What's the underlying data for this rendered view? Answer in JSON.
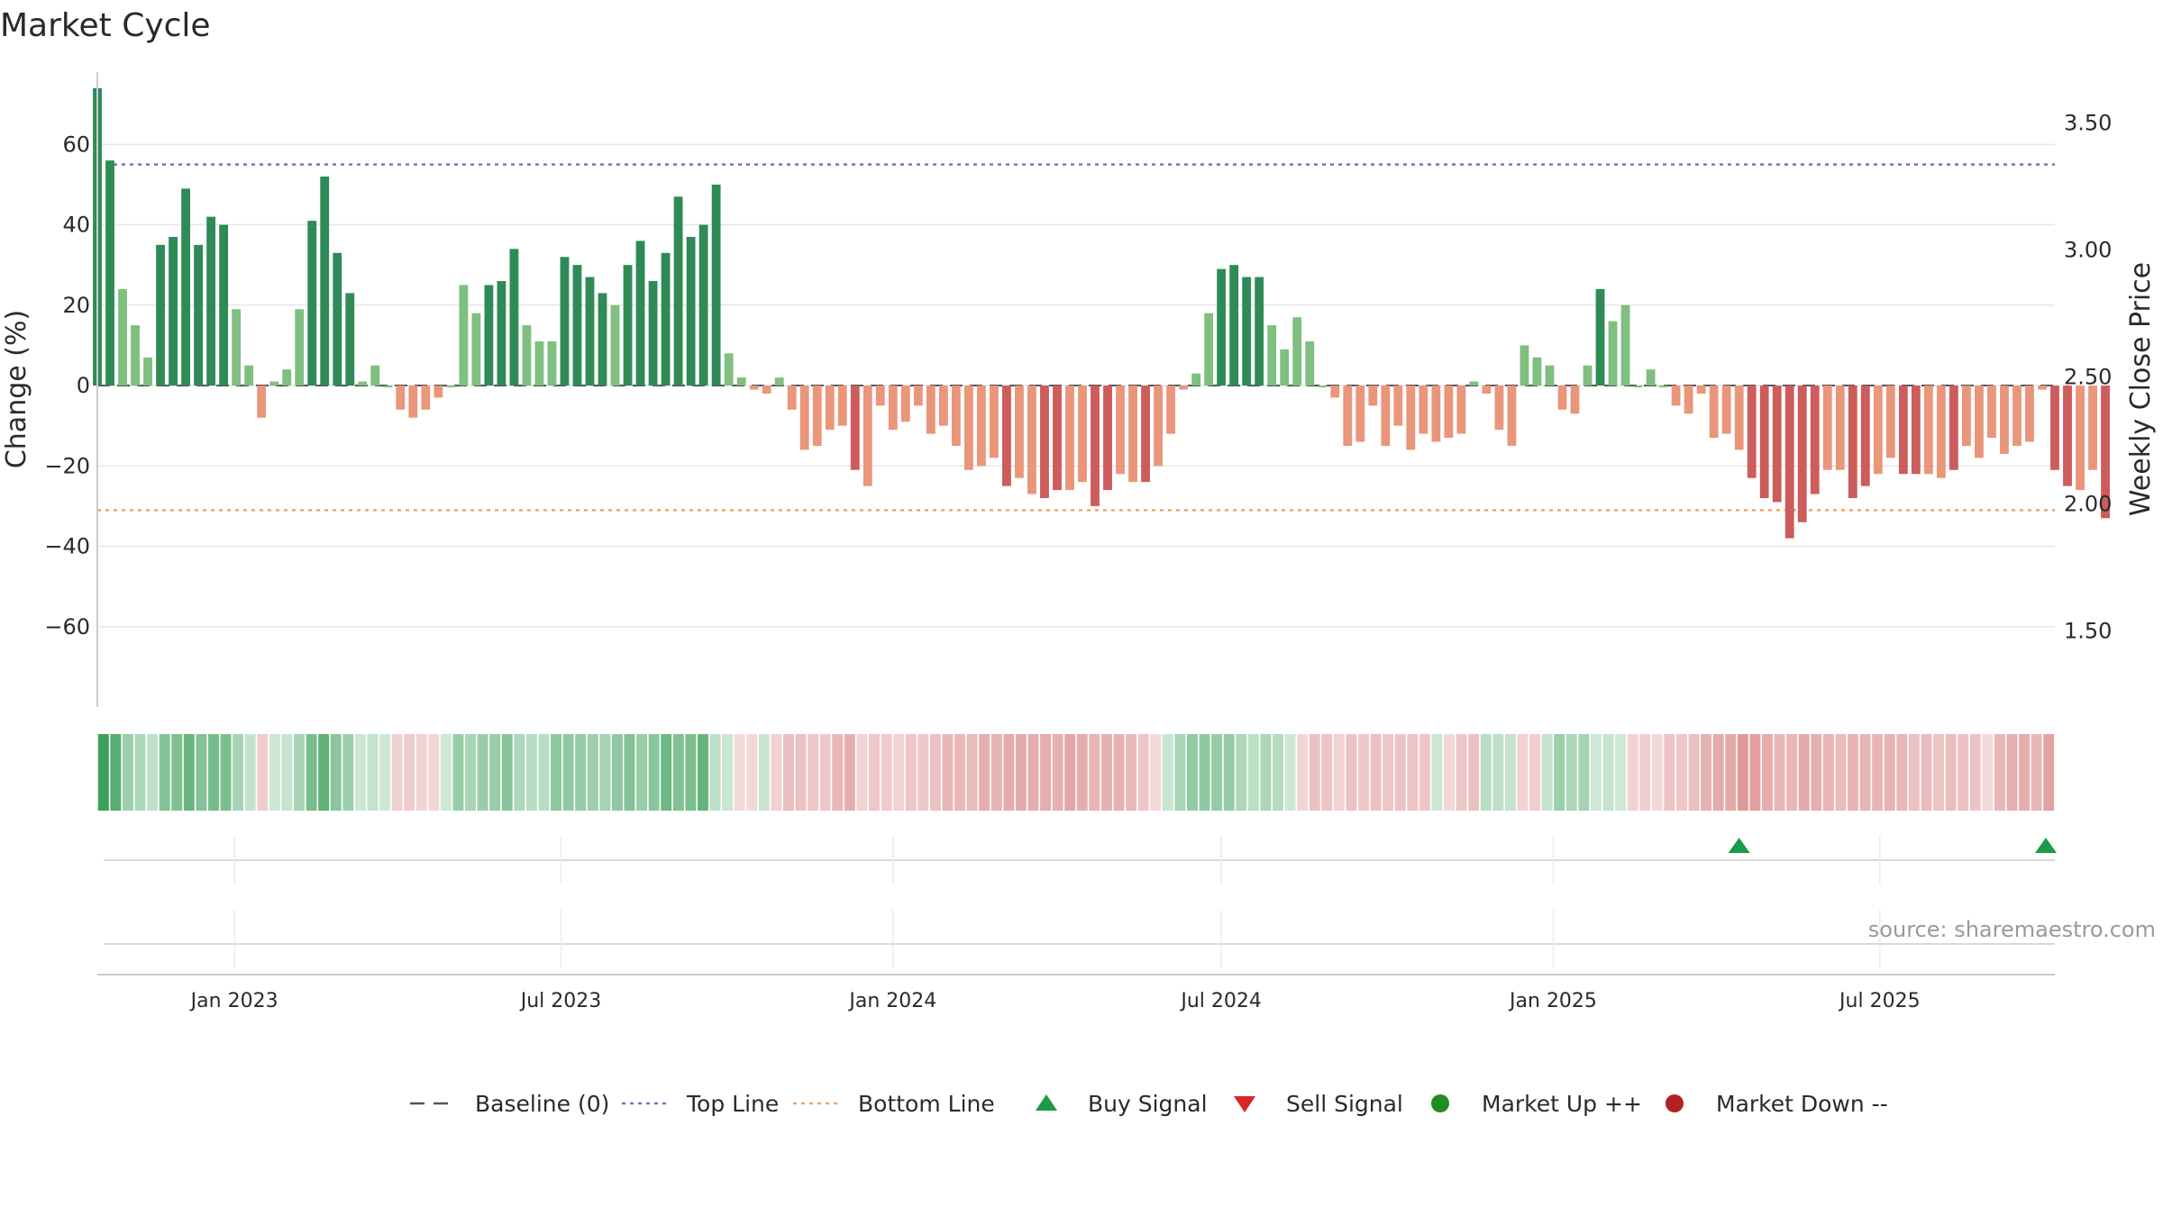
{
  "chart_data": {
    "type": "bar",
    "title": "Market Cycle",
    "ylabel": "Change (%)",
    "y2label": "Weekly Close Price",
    "source": "source: sharemaestro.com",
    "ylim": [
      -80,
      78
    ],
    "y2lim": [
      1.2,
      3.7
    ],
    "yticks": [
      60,
      40,
      20,
      0,
      -20,
      -40,
      -60
    ],
    "ytick_labels": [
      "60",
      "40",
      "20",
      "0",
      "−20",
      "−40",
      "−60"
    ],
    "y2ticks": [
      3.5,
      3.0,
      2.5,
      2.0,
      1.5
    ],
    "y2tick_labels": [
      "3.50",
      "3.00",
      "2.50",
      "2.00",
      "1.50"
    ],
    "x_start": "2022-10-17",
    "x_end": "2025-10-06",
    "x_step_weeks": 1,
    "xticks": [
      "2023-01-01",
      "2023-07-01",
      "2024-01-01",
      "2024-07-01",
      "2025-01-01",
      "2025-07-01"
    ],
    "xtick_labels": [
      "Jan 2023",
      "Jul 2023",
      "Jan 2024",
      "Jul 2024",
      "Jan 2025",
      "Jul 2025"
    ],
    "top_line": 55,
    "bottom_line": -31,
    "baseline": 0,
    "values": [
      74,
      56,
      24,
      15,
      7,
      35,
      37,
      49,
      35,
      42,
      40,
      19,
      5,
      -8,
      1,
      4,
      19,
      41,
      52,
      33,
      23,
      1,
      5,
      0,
      -6,
      -8,
      -6,
      -3,
      0,
      25,
      18,
      25,
      26,
      34,
      15,
      11,
      11,
      32,
      30,
      27,
      23,
      20,
      30,
      36,
      26,
      33,
      47,
      37,
      40,
      50,
      8,
      2,
      -1,
      -2,
      2,
      -6,
      -16,
      -15,
      -11,
      -10,
      -21,
      -25,
      -5,
      -11,
      -9,
      -5,
      -12,
      -10,
      -15,
      -21,
      -20,
      -18,
      -25,
      -23,
      -27,
      -28,
      -26,
      -26,
      -24,
      -30,
      -26,
      -22,
      -24,
      -24,
      -20,
      -12,
      -1,
      3,
      18,
      29,
      30,
      27,
      27,
      15,
      9,
      17,
      11,
      0,
      -3,
      -15,
      -14,
      -5,
      -15,
      -10,
      -16,
      -12,
      -14,
      -13,
      -12,
      1,
      -2,
      -11,
      -15,
      10,
      7,
      5,
      -6,
      -7,
      5,
      24,
      16,
      20,
      0,
      4,
      0,
      -5,
      -7,
      -2,
      -13,
      -12,
      -16,
      -23,
      -28,
      -29,
      -38,
      -34,
      -27,
      -21,
      -21,
      -28,
      -25,
      -22,
      -18,
      -22,
      -22,
      -22,
      -23,
      -21,
      -15,
      -18,
      -13,
      -17,
      -15,
      -14,
      -1,
      -21,
      -25,
      -26,
      -21,
      -33
    ],
    "buy_signals": [
      "2025-04-14",
      "2025-10-06"
    ],
    "sell_signals": [],
    "colors": {
      "up_strong": "#2e8b57",
      "up_light": "#7fbf7f",
      "down_strong": "#cd5c5c",
      "down_light": "#e9967a",
      "top_line": "#9467bd",
      "bottom_line": "#f4a460",
      "buy": "#1a9a4a",
      "sell": "#d62728",
      "market_up": "#228b22",
      "market_down": "#b22222",
      "baseline": "#555555"
    },
    "legend": [
      {
        "label": "Baseline (0)",
        "marker": "dash"
      },
      {
        "label": "Top Line",
        "marker": "dotted-purple"
      },
      {
        "label": "Bottom Line",
        "marker": "dotted-orange"
      },
      {
        "label": "Buy Signal",
        "marker": "triangle-up"
      },
      {
        "label": "Sell Signal",
        "marker": "triangle-down"
      },
      {
        "label": "Market Up ++",
        "marker": "dot-green"
      },
      {
        "label": "Market Down --",
        "marker": "dot-red"
      }
    ],
    "legend_position": "bottom-center",
    "grid": true
  }
}
